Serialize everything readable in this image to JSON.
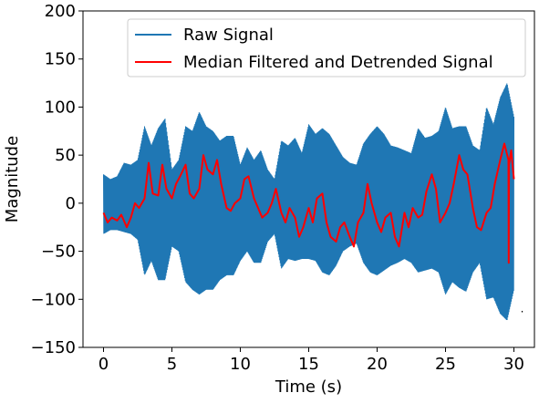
{
  "chart_data": {
    "type": "line",
    "title": "",
    "xlabel": "Time (s)",
    "ylabel": "Magnitude",
    "xlim": [
      -1.5,
      31.5
    ],
    "ylim": [
      -150,
      200
    ],
    "xticks": [
      0,
      5,
      10,
      15,
      20,
      25,
      30
    ],
    "xtick_labels": [
      "0",
      "5",
      "10",
      "15",
      "20",
      "25",
      "30"
    ],
    "yticks": [
      -150,
      -100,
      -50,
      0,
      50,
      100,
      150,
      200
    ],
    "ytick_labels": [
      "−150",
      "−100",
      "−50",
      "0",
      "50",
      "100",
      "150",
      "200"
    ],
    "grid": false,
    "legend_position": "top-right",
    "series": [
      {
        "name": "Raw Signal",
        "color": "#1f77b4",
        "style": "band",
        "x": [
          0,
          0.5,
          1,
          1.5,
          2,
          2.5,
          3,
          3.5,
          4,
          4.5,
          5,
          5.5,
          6,
          6.5,
          7,
          7.5,
          8,
          8.5,
          9,
          9.5,
          10,
          10.5,
          11,
          11.5,
          12,
          12.5,
          13,
          13.5,
          14,
          14.5,
          15,
          15.5,
          16,
          16.5,
          17,
          17.5,
          18,
          18.5,
          19,
          19.5,
          20,
          20.5,
          21,
          21.5,
          22,
          22.5,
          23,
          23.5,
          24,
          24.5,
          25,
          25.5,
          26,
          26.5,
          27,
          27.5,
          28,
          28.5,
          29,
          29.5,
          30
        ],
        "upper": [
          30,
          25,
          28,
          42,
          40,
          45,
          80,
          60,
          78,
          88,
          35,
          45,
          80,
          75,
          95,
          80,
          75,
          65,
          70,
          70,
          40,
          58,
          45,
          55,
          35,
          25,
          65,
          60,
          68,
          52,
          82,
          72,
          78,
          72,
          60,
          48,
          42,
          40,
          62,
          72,
          80,
          72,
          60,
          58,
          55,
          52,
          78,
          68,
          70,
          75,
          100,
          78,
          80,
          80,
          60,
          55,
          100,
          82,
          110,
          125,
          90
        ],
        "lower": [
          -32,
          -28,
          -28,
          -30,
          -32,
          -38,
          -75,
          -60,
          -80,
          -80,
          -45,
          -50,
          -82,
          -90,
          -95,
          -90,
          -90,
          -80,
          -75,
          -75,
          -60,
          -50,
          -62,
          -62,
          -40,
          -32,
          -68,
          -58,
          -60,
          -58,
          -58,
          -60,
          -72,
          -75,
          -65,
          -50,
          -45,
          -42,
          -62,
          -72,
          -75,
          -70,
          -65,
          -62,
          -58,
          -62,
          -72,
          -70,
          -68,
          -72,
          -95,
          -82,
          -88,
          -92,
          -72,
          -62,
          -100,
          -98,
          -115,
          -122,
          -90
        ]
      },
      {
        "name": "Median Filtered and Detrended Signal",
        "color": "#ff0000",
        "style": "line",
        "x": [
          0,
          0.3,
          0.6,
          1,
          1.3,
          1.7,
          2,
          2.3,
          2.6,
          3,
          3.3,
          3.6,
          4,
          4.3,
          4.6,
          5,
          5.3,
          5.6,
          6,
          6.3,
          6.6,
          7,
          7.3,
          7.6,
          8,
          8.3,
          8.6,
          9,
          9.3,
          9.6,
          10,
          10.3,
          10.6,
          11,
          11.3,
          11.6,
          12,
          12.3,
          12.6,
          13,
          13.3,
          13.6,
          14,
          14.3,
          14.6,
          15,
          15.3,
          15.6,
          16,
          16.3,
          16.6,
          17,
          17.3,
          17.6,
          18,
          18.3,
          18.6,
          19,
          19.3,
          19.6,
          20,
          20.3,
          20.6,
          21,
          21.3,
          21.6,
          22,
          22.3,
          22.6,
          23,
          23.3,
          23.6,
          24,
          24.3,
          24.6,
          25,
          25.3,
          25.6,
          26,
          26.3,
          26.6,
          27,
          27.3,
          27.6,
          28,
          28.3,
          28.6,
          29,
          29.3,
          29.6,
          29.62,
          29.64,
          29.8,
          30
        ],
        "y": [
          -10,
          -20,
          -15,
          -18,
          -12,
          -25,
          -15,
          0,
          -5,
          5,
          42,
          10,
          8,
          40,
          15,
          5,
          20,
          28,
          40,
          10,
          5,
          15,
          50,
          35,
          30,
          45,
          20,
          -5,
          -8,
          0,
          5,
          25,
          28,
          5,
          -5,
          -15,
          -10,
          0,
          15,
          -10,
          -20,
          -5,
          -15,
          -35,
          -25,
          -5,
          -20,
          5,
          10,
          -20,
          -35,
          -40,
          -25,
          -20,
          -35,
          -45,
          -20,
          -10,
          20,
          0,
          -20,
          -30,
          -15,
          -10,
          -35,
          -45,
          -10,
          -25,
          -5,
          -15,
          -12,
          12,
          30,
          15,
          -20,
          -10,
          0,
          20,
          50,
          35,
          30,
          -5,
          -25,
          -28,
          -10,
          -5,
          20,
          45,
          62,
          45,
          -62,
          40,
          55,
          25
        ]
      }
    ],
    "annotations": [
      {
        "text": "·",
        "x": 30.6,
        "y": -117
      }
    ]
  }
}
